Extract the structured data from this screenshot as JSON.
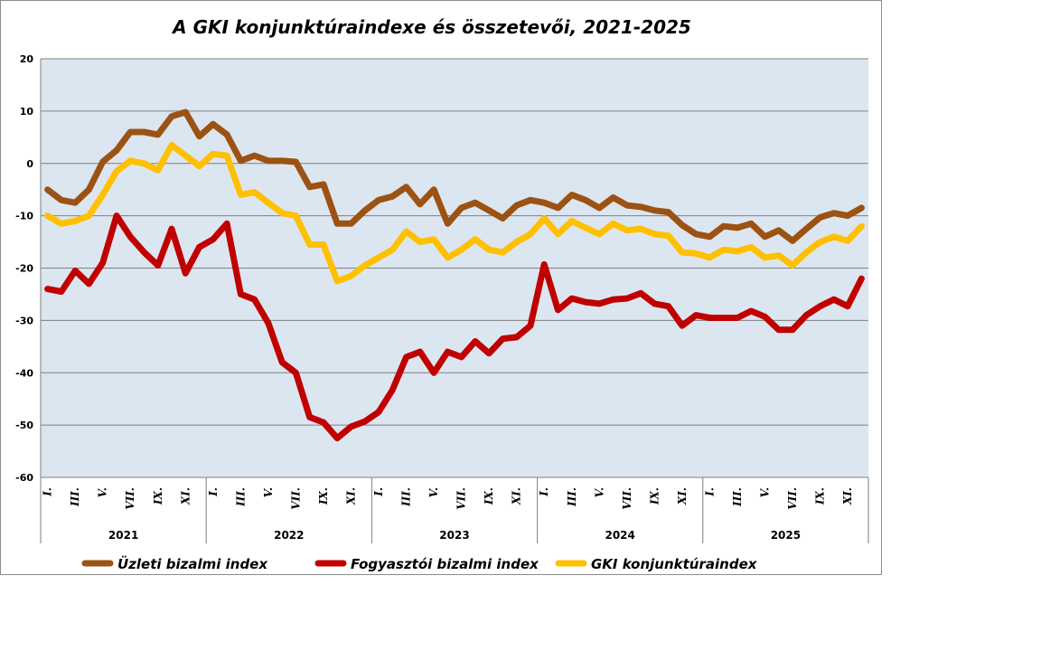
{
  "chart_data": {
    "type": "line",
    "title": "A GKI konjunktúraindexe és összetevői, 2021-2025",
    "ylim": [
      -60,
      20
    ],
    "yticks": [
      20,
      10,
      0,
      -10,
      -20,
      -30,
      -40,
      -50,
      -60
    ],
    "grid": true,
    "month_tick_labels": [
      "I.",
      "III.",
      "V.",
      "VII.",
      "IX.",
      "XI."
    ],
    "years": [
      "2021",
      "2022",
      "2023",
      "2024",
      "2025"
    ],
    "legend_position": "bottom",
    "series": [
      {
        "name": "Üzleti bizalmi index",
        "legend_label": "Üzleti bizalmi index",
        "color": "#9C5212",
        "values": [
          -5,
          -7,
          -7.5,
          -5,
          0.3,
          2.5,
          6,
          6,
          5.5,
          9,
          9.8,
          5.2,
          7.5,
          5.5,
          0.5,
          1.5,
          0.5,
          0.5,
          0.3,
          -4.5,
          -4,
          -11.5,
          -11.5,
          -9,
          -7,
          -6.3,
          -4.5,
          -7.8,
          -5,
          -11.5,
          -8.5,
          -7.5,
          -9,
          -10.5,
          -8,
          -7,
          -7.5,
          -8.5,
          -6,
          -7,
          -8.5,
          -6.5,
          -8,
          -8.3,
          -9,
          -9.3,
          -11.8,
          -13.5,
          -14,
          -12,
          -12.3,
          -11.5,
          -14,
          -12.8,
          -14.8,
          -12.5,
          -10.3,
          -9.5,
          -10,
          -8.5
        ]
      },
      {
        "name": "Fogyasztói bizalmi index",
        "legend_label": "Fogyasztói bizalmi index",
        "color": "#C00000",
        "values": [
          -24,
          -24.5,
          -20.5,
          -23,
          -19,
          -10,
          -14,
          -17,
          -19.5,
          -12.5,
          -21,
          -16,
          -14.5,
          -11.5,
          -25,
          -26,
          -30.5,
          -38,
          -40,
          -48.5,
          -49.5,
          -52.5,
          -50.3,
          -49.3,
          -47.5,
          -43.3,
          -37,
          -36,
          -40,
          -36,
          -37,
          -34,
          -36.3,
          -33.5,
          -33.2,
          -31,
          -19.3,
          -28,
          -25.8,
          -26.5,
          -26.8,
          -26,
          -25.8,
          -24.8,
          -26.8,
          -27.3,
          -31,
          -29,
          -29.5,
          -29.5,
          -29.5,
          -28.2,
          -29.3,
          -31.8,
          -31.8,
          -29,
          -27.3,
          -26,
          -27.3,
          -22
        ]
      },
      {
        "name": "GKI konjunktúraindex",
        "legend_label": "GKI konjunktúraindex",
        "color": "#FFC000",
        "values": [
          -10,
          -11.5,
          -11,
          -10,
          -6,
          -1.5,
          0.5,
          0,
          -1.3,
          3.5,
          1.5,
          -0.5,
          1.8,
          1.5,
          -6,
          -5.5,
          -7.5,
          -9.5,
          -10,
          -15.5,
          -15.5,
          -22.5,
          -21.5,
          -19.5,
          -18,
          -16.5,
          -13,
          -15,
          -14.5,
          -18,
          -16.5,
          -14.5,
          -16.5,
          -17,
          -15,
          -13.5,
          -10.5,
          -13.5,
          -11,
          -12.3,
          -13.5,
          -11.5,
          -12.8,
          -12.5,
          -13.5,
          -13.8,
          -17,
          -17.2,
          -18,
          -16.5,
          -16.8,
          -16,
          -18,
          -17.6,
          -19.5,
          -17,
          -15,
          -14,
          -14.8,
          -12
        ]
      }
    ]
  }
}
